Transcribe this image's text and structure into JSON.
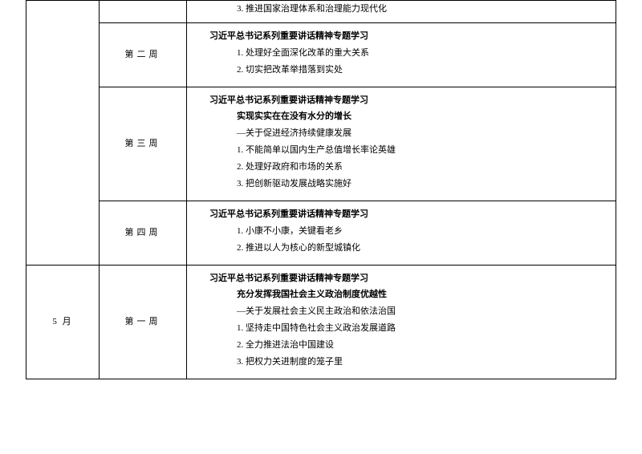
{
  "rows": [
    {
      "month": "",
      "week": "",
      "title": "",
      "subtitle": "",
      "extra": "",
      "items": [
        "3. 推进国家治理体系和治理能力现代化"
      ],
      "short": true
    },
    {
      "month": "",
      "week": "第二周",
      "title": "习近平总书记系列重要讲话精神专题学习",
      "subtitle": "",
      "extra": "",
      "items": [
        "1. 处理好全面深化改革的重大关系",
        "2. 切实把改革举措落到实处"
      ],
      "short": false
    },
    {
      "month": "",
      "week": "第三周",
      "title": "习近平总书记系列重要讲话精神专题学习",
      "subtitle": "实现实实在在没有水分的增长",
      "extra": "—关于促进经济持续健康发展",
      "items": [
        "1. 不能简单以国内生产总值增长率论英雄",
        "2. 处理好政府和市场的关系",
        "3. 把创新驱动发展战略实施好"
      ],
      "short": false
    },
    {
      "month": "",
      "week": "第四周",
      "title": "习近平总书记系列重要讲话精神专题学习",
      "subtitle": "",
      "extra": "",
      "items": [
        "1. 小康不小康，关键看老乡",
        "2. 推进以人为核心的新型城镇化"
      ],
      "short": false
    },
    {
      "month": "5 月",
      "week": "第一周",
      "title": "习近平总书记系列重要讲话精神专题学习",
      "subtitle": "充分发挥我国社会主义政治制度优越性",
      "extra": "—关于发展社会主义民主政治和依法治国",
      "items": [
        "1. 坚持走中国特色社会主义政治发展道路",
        "2. 全力推进法治中国建设",
        "3. 把权力关进制度的笼子里"
      ],
      "short": false
    }
  ]
}
